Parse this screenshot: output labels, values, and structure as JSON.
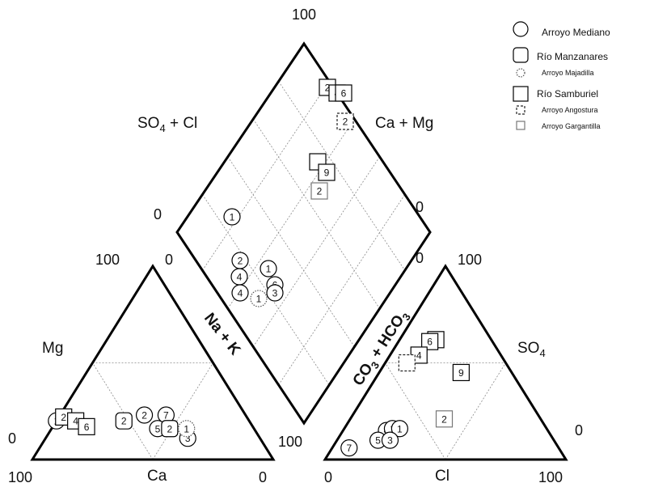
{
  "axis_labels": {
    "diamond_left": [
      "SO",
      "4",
      " + Cl"
    ],
    "diamond_right": "Ca + Mg",
    "na_k": "Na + K",
    "co3_hco3": [
      "CO",
      "3",
      " + HCO",
      "3"
    ],
    "mg": "Mg",
    "ca": "Ca",
    "so4": [
      "SO",
      "4"
    ],
    "cl": "Cl"
  },
  "ticks": [
    {
      "key": "diamond_top",
      "text": "100"
    },
    {
      "key": "diamond_left_outer",
      "text": "0"
    },
    {
      "key": "diamond_left_inner",
      "text": "0"
    },
    {
      "key": "diamond_right_outer",
      "text": "0"
    },
    {
      "key": "diamond_right_inner",
      "text": "0"
    },
    {
      "key": "left_top",
      "text": "100"
    },
    {
      "key": "left_mg_zero",
      "text": "0"
    },
    {
      "key": "left_bottom_left",
      "text": "100"
    },
    {
      "key": "left_bottom_right",
      "text": "0"
    },
    {
      "key": "left_na_100",
      "text": "100"
    },
    {
      "key": "right_top",
      "text": "100"
    },
    {
      "key": "right_bottom_left",
      "text": "0"
    },
    {
      "key": "right_bottom_right",
      "text": "100"
    },
    {
      "key": "right_so4_zero",
      "text": "0"
    }
  ],
  "legend": [
    {
      "label": "Arroyo Mediano",
      "shape": "circle",
      "size": "large",
      "style": "solid"
    },
    {
      "label": "Río Manzanares",
      "shape": "rounded-square",
      "size": "large",
      "style": "solid"
    },
    {
      "label": "Arroyo Majadilla",
      "shape": "circle",
      "size": "small",
      "style": "dotted"
    },
    {
      "label": "Río Samburiel",
      "shape": "square",
      "size": "large",
      "style": "solid"
    },
    {
      "label": "Arroyo Angostura",
      "shape": "square",
      "size": "small",
      "style": "dashed"
    },
    {
      "label": "Arroyo Gargantilla",
      "shape": "square",
      "size": "small",
      "style": "light"
    }
  ],
  "chart_data": {
    "type": "piper",
    "cation_triangle": {
      "axes": [
        "Ca",
        "Mg",
        "Na + K"
      ],
      "samples": [
        {
          "series": "Arroyo Mediano",
          "label": "1",
          "Ca": 80,
          "Mg": 20
        },
        {
          "series": "Río Samburiel",
          "label": "2",
          "Ca": 76,
          "Mg": 22
        },
        {
          "series": "Río Samburiel",
          "label": "4",
          "Ca": 72,
          "Mg": 20
        },
        {
          "series": "Río Samburiel",
          "label": "6",
          "Ca": 69,
          "Mg": 17
        },
        {
          "series": "Río Manzanares",
          "label": "2",
          "Ca": 52,
          "Mg": 20
        },
        {
          "series": "Arroyo Mediano",
          "label": "2",
          "Ca": 42,
          "Mg": 23
        },
        {
          "series": "Arroyo Mediano",
          "label": "7",
          "Ca": 33,
          "Mg": 23
        },
        {
          "series": "Arroyo Mediano",
          "label": "5",
          "Ca": 40,
          "Mg": 16
        },
        {
          "series": "Río Manzanares",
          "label": "2",
          "Ca": 35,
          "Mg": 16
        },
        {
          "series": "Arroyo Mediano",
          "label": "3",
          "Ca": 30,
          "Mg": 11
        },
        {
          "series": "Arroyo Majadilla",
          "label": "1",
          "Ca": 28,
          "Mg": 16
        }
      ]
    },
    "anion_triangle": {
      "axes": [
        "CO3 + HCO3",
        "SO4",
        "Cl"
      ],
      "samples": [
        {
          "series": "Arroyo Mediano",
          "label": "4",
          "Cl": 18,
          "SO4": 15
        },
        {
          "series": "Arroyo Mediano",
          "label": "1",
          "Cl": 20,
          "SO4": 16
        },
        {
          "series": "Arroyo Mediano",
          "label": "1",
          "Cl": 23,
          "SO4": 16
        },
        {
          "series": "Arroyo Mediano",
          "label": "5",
          "Cl": 17,
          "SO4": 10
        },
        {
          "series": "Arroyo Mediano",
          "label": "3",
          "Cl": 22,
          "SO4": 10
        },
        {
          "series": "Arroyo Mediano",
          "label": "7",
          "Cl": 7,
          "SO4": 6
        },
        {
          "series": "Río Samburiel",
          "label": "9",
          "Cl": 34,
          "SO4": 45
        },
        {
          "series": "Río Samburiel",
          "label": "2",
          "Cl": 15,
          "SO4": 62
        },
        {
          "series": "Río Samburiel",
          "label": "6",
          "Cl": 13,
          "SO4": 61
        },
        {
          "series": "Río Samburiel",
          "label": "4",
          "Cl": 12,
          "SO4": 54
        },
        {
          "series": "Arroyo Angostura",
          "label": "",
          "Cl": 9,
          "SO4": 50
        },
        {
          "series": "Arroyo Gargantilla",
          "label": "2",
          "Cl": 39,
          "SO4": 21
        }
      ]
    },
    "diamond": {
      "samples": [
        {
          "series": "Arroyo Mediano",
          "label": "1"
        },
        {
          "series": "Río Samburiel",
          "label": "2"
        },
        {
          "series": "Río Samburiel",
          "label": "4"
        },
        {
          "series": "Río Samburiel",
          "label": "6"
        },
        {
          "series": "Arroyo Angostura",
          "label": "2"
        },
        {
          "series": "Río Samburiel",
          "label": ""
        },
        {
          "series": "Río Samburiel",
          "label": "9"
        },
        {
          "series": "Arroyo Gargantilla",
          "label": "2"
        },
        {
          "series": "Arroyo Mediano",
          "label": "2"
        },
        {
          "series": "Arroyo Mediano",
          "label": "1"
        },
        {
          "series": "Arroyo Mediano",
          "label": "4"
        },
        {
          "series": "Arroyo Mediano",
          "label": "6"
        },
        {
          "series": "Arroyo Mediano",
          "label": "4"
        },
        {
          "series": "Arroyo Mediano",
          "label": "3"
        },
        {
          "series": "Arroyo Majadilla",
          "label": "1"
        }
      ]
    }
  }
}
